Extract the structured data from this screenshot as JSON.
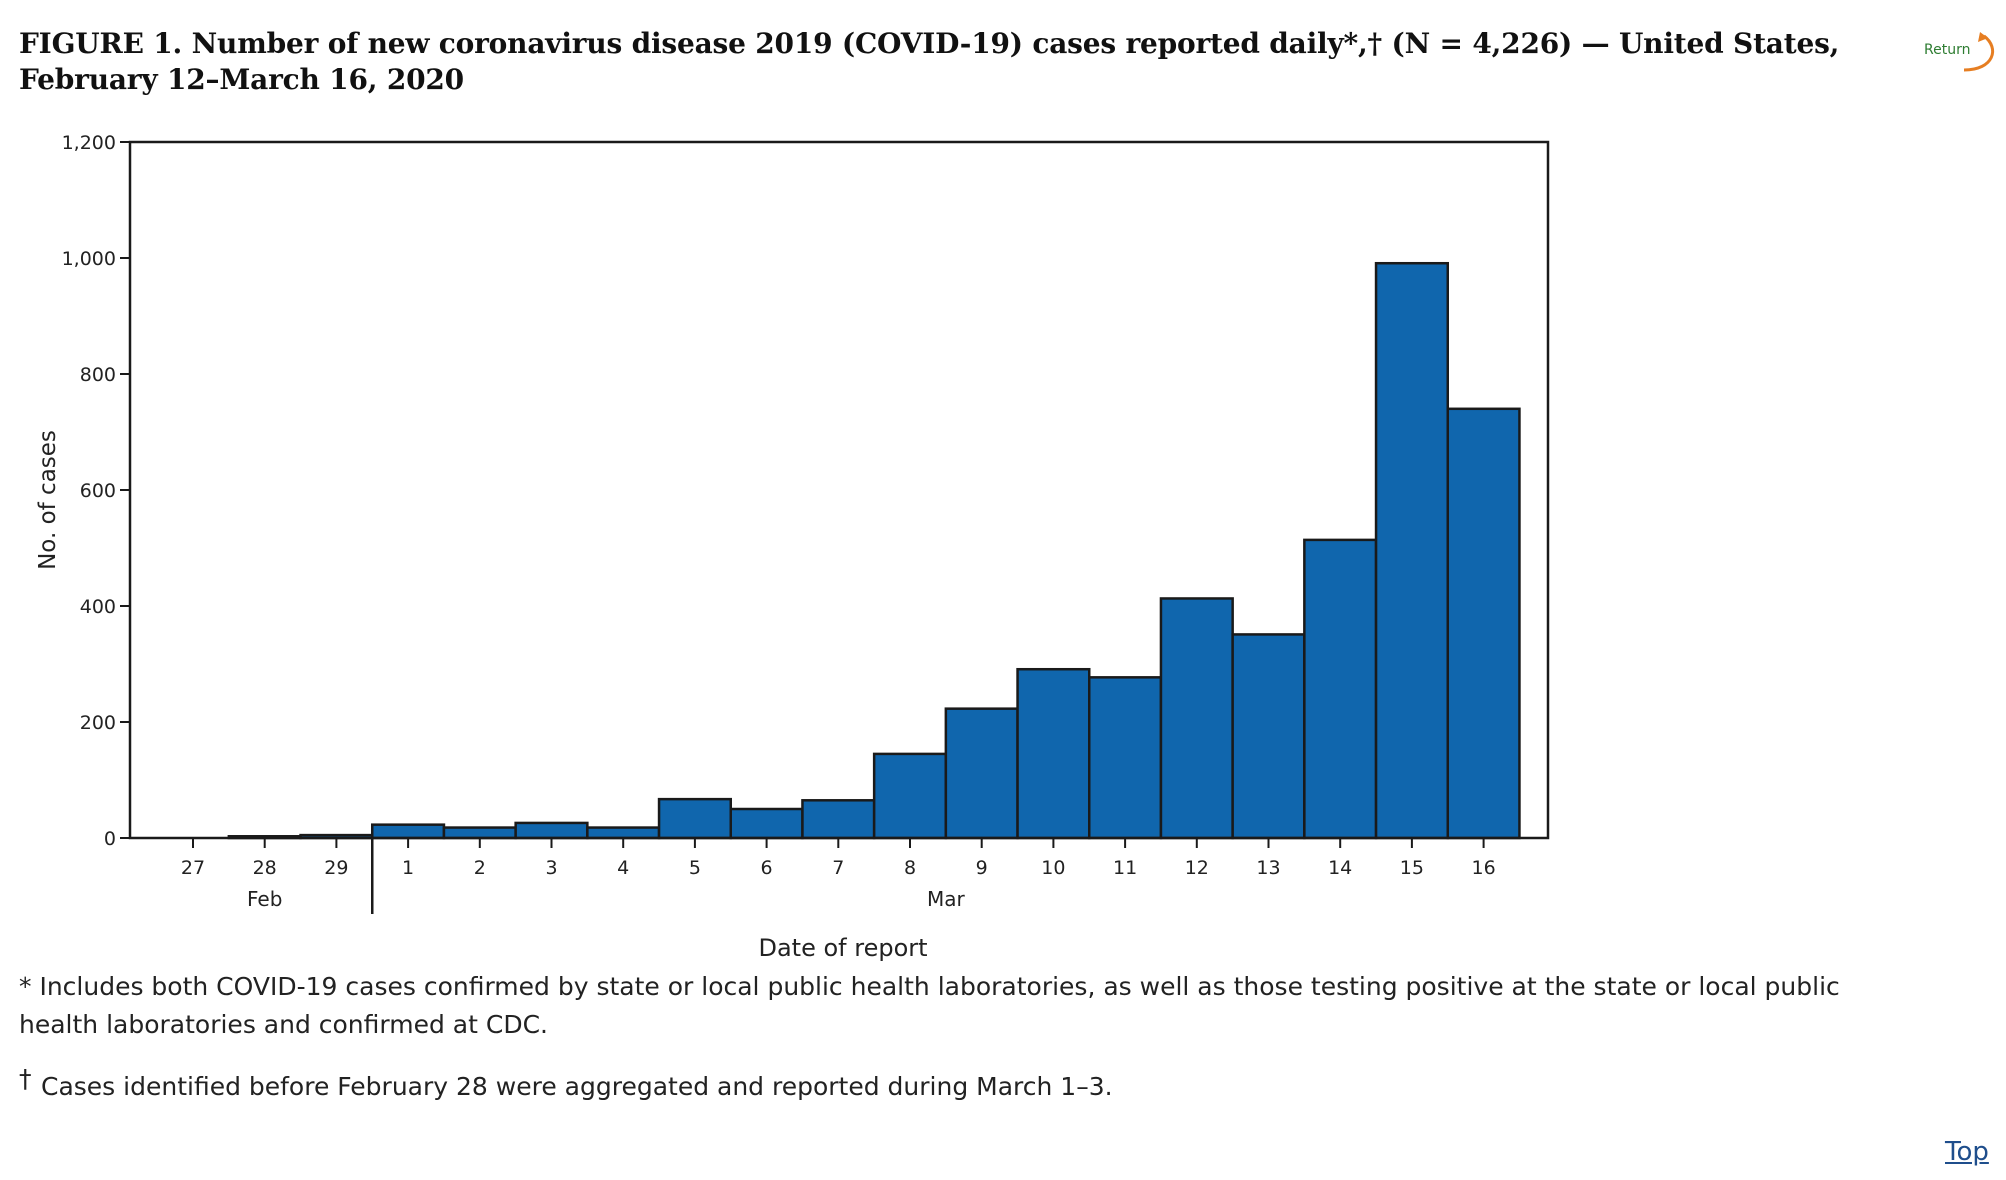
{
  "title": "FIGURE 1. Number of new coronavirus disease 2019 (COVID-19) cases reported daily*,† (N = 4,226) — United States, February 12–March 16, 2020",
  "return_label": "Return",
  "top_label": "Top",
  "footnotes": {
    "note1": "* Includes both COVID-19 cases confirmed by state or local public health laboratories, as well as those testing positive at the state or local public health laboratories and confirmed at CDC.",
    "note2_symbol": "†",
    "note2": "Cases identified before February 28 were aggregated and reported during March 1–3."
  },
  "colors": {
    "bar": "#1066ad",
    "bar_stroke": "#1a1a1a",
    "axis": "#1a1a1a",
    "return": "#2e7d32",
    "return_arrow": "#e67e22"
  },
  "chart_data": {
    "type": "bar",
    "categories": [
      "27",
      "28",
      "29",
      "1",
      "2",
      "3",
      "4",
      "5",
      "6",
      "7",
      "8",
      "9",
      "10",
      "11",
      "12",
      "13",
      "14",
      "15",
      "16"
    ],
    "values": [
      0,
      3,
      5,
      23,
      18,
      26,
      18,
      67,
      50,
      65,
      145,
      223,
      291,
      277,
      413,
      351,
      514,
      991,
      740
    ],
    "month_labels": [
      {
        "label": "Feb",
        "from": "27",
        "to": "29"
      },
      {
        "label": "Mar",
        "from": "1",
        "to": "16"
      }
    ],
    "xlabel": "Date of report",
    "ylabel": "No. of cases",
    "ylim": [
      0,
      1200
    ],
    "yticks": [
      0,
      200,
      400,
      600,
      800,
      1000,
      1200
    ],
    "ytick_labels": [
      "0",
      "200",
      "400",
      "600",
      "800",
      "1,000",
      "1,200"
    ],
    "grid": false,
    "legend": "none"
  }
}
